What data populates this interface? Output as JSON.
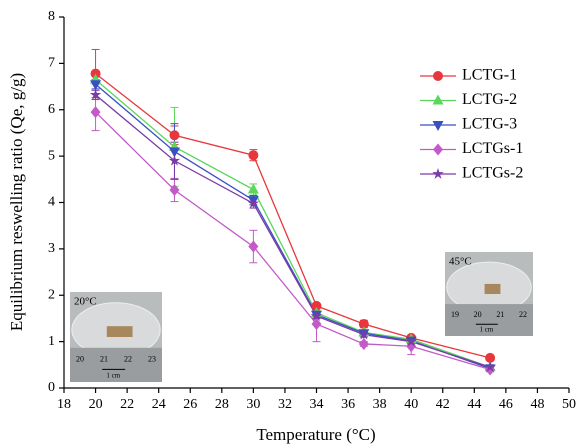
{
  "chart_data": {
    "type": "line",
    "xlabel": "Temperature (°C)",
    "ylabel": "Equilibrium reswelling ratio (Qe, g/g)",
    "x": [
      20,
      25,
      30,
      34,
      37,
      40,
      45
    ],
    "series": [
      {
        "name": "LCTG-1",
        "color": "#e8373c",
        "marker": "circle",
        "values": [
          6.78,
          5.45,
          5.02,
          1.77,
          1.38,
          1.08,
          0.65
        ],
        "errors": [
          0.52,
          0.2,
          0.12,
          0.05,
          0.08,
          0.05,
          0.05
        ]
      },
      {
        "name": "LCTG-2",
        "color": "#5cd65c",
        "marker": "triangle-up",
        "values": [
          6.65,
          5.2,
          4.28,
          1.62,
          1.2,
          1.05,
          0.45
        ],
        "errors": [
          0.1,
          0.85,
          0.12,
          0.05,
          0.05,
          0.05,
          0.05
        ]
      },
      {
        "name": "LCTG-3",
        "color": "#3a4fc4",
        "marker": "triangle-down",
        "values": [
          6.55,
          5.1,
          4.05,
          1.58,
          1.18,
          1.02,
          0.42
        ],
        "errors": [
          0.1,
          0.6,
          0.1,
          0.05,
          0.05,
          0.05,
          0.05
        ]
      },
      {
        "name": "LCTGs-1",
        "color": "#c45ac8",
        "marker": "diamond",
        "values": [
          5.95,
          4.27,
          3.05,
          1.38,
          0.95,
          0.9,
          0.4
        ],
        "errors": [
          0.4,
          0.25,
          0.35,
          0.38,
          0.05,
          0.18,
          0.05
        ]
      },
      {
        "name": "LCTGs-2",
        "color": "#7a3aa8",
        "marker": "star",
        "values": [
          6.32,
          4.9,
          3.98,
          1.55,
          1.15,
          1.0,
          0.45
        ],
        "errors": [
          0.1,
          0.4,
          0.1,
          0.05,
          0.05,
          0.05,
          0.05
        ]
      }
    ],
    "xlim": [
      18,
      50
    ],
    "xticks": [
      18,
      20,
      22,
      24,
      26,
      28,
      30,
      32,
      34,
      36,
      38,
      40,
      42,
      44,
      46,
      48,
      50
    ],
    "ylim": [
      0,
      8
    ],
    "yticks": [
      0,
      1,
      2,
      3,
      4,
      5,
      6,
      7,
      8
    ],
    "grid": false,
    "legend": "upper right",
    "insets": [
      {
        "label": "20°C",
        "ruler": [
          "20",
          "21",
          "22",
          "23"
        ],
        "scale": "1 cm"
      },
      {
        "label": "45°C",
        "ruler": [
          "19",
          "20",
          "21",
          "22"
        ],
        "scale": "1 cm"
      }
    ]
  }
}
